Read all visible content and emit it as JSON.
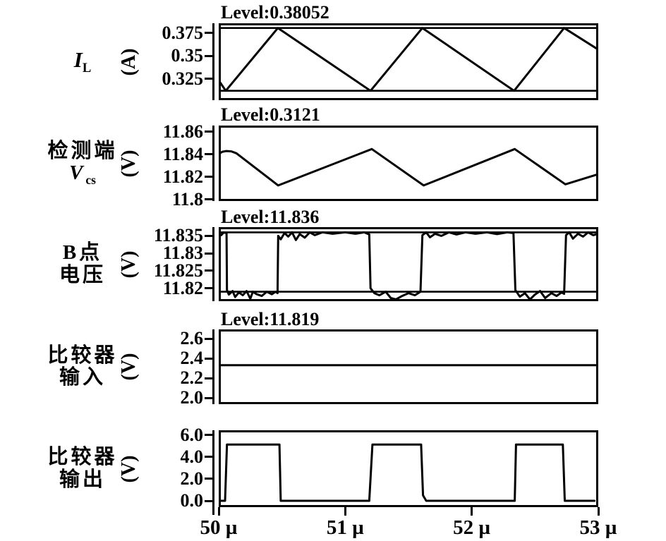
{
  "figure": {
    "background_color": "#ffffff",
    "line_color": "#000000",
    "description": "Five stacked simulation waveform panels sharing one time axis"
  },
  "chart_data": {
    "type": "line",
    "x_axis": {
      "unit": "µs",
      "range": [
        50,
        53
      ],
      "ticks": [
        {
          "label": "50 µ",
          "value": 50
        },
        {
          "label": "51 µ",
          "value": 51
        },
        {
          "label": "52 µ",
          "value": 52
        },
        {
          "label": "53 µ",
          "value": 53
        }
      ]
    },
    "panels": [
      {
        "id": "inductor-current",
        "title": "Level:0.38052",
        "label": {
          "line1": "I",
          "line1_sub": "L"
        },
        "unit": "(A)",
        "domain": [
          0.3019,
          0.3857
        ],
        "yticks": [
          {
            "label": "0.375",
            "value": 0.375
          },
          {
            "label": "0.35",
            "value": 0.35
          },
          {
            "label": "0.325",
            "value": 0.325
          }
        ],
        "levels": [
          0.38052,
          0.3121
        ],
        "series": [
          [
            50.0,
            0.3235
          ],
          [
            50.056,
            0.3121
          ],
          [
            50.468,
            0.38052
          ],
          [
            51.2,
            0.3121
          ],
          [
            51.61,
            0.38052
          ],
          [
            52.335,
            0.3121
          ],
          [
            52.73,
            0.38052
          ],
          [
            53.0,
            0.357
          ]
        ]
      },
      {
        "id": "sense-voltage",
        "title": "Level:0.3121",
        "label": {
          "line1": "检测端",
          "line2": "V",
          "line2_sub": "cs"
        },
        "unit": "(V)",
        "domain": [
          11.7987,
          11.8656
        ],
        "yticks": [
          {
            "label": "11.86",
            "value": 11.86
          },
          {
            "label": "11.84",
            "value": 11.84
          },
          {
            "label": "11.82",
            "value": 11.82
          },
          {
            "label": "11.8",
            "value": 11.8
          }
        ],
        "levels": [],
        "series": [
          [
            50.0,
            11.8405
          ],
          [
            50.03,
            11.8424
          ],
          [
            50.06,
            11.843
          ],
          [
            50.1,
            11.8427
          ],
          [
            50.14,
            11.841
          ],
          [
            50.47,
            11.8125
          ],
          [
            51.21,
            11.8448
          ],
          [
            51.62,
            11.8125
          ],
          [
            52.34,
            11.8448
          ],
          [
            52.74,
            11.8135
          ],
          [
            53.0,
            11.8225
          ]
        ]
      },
      {
        "id": "b-node-voltage",
        "title": "Level:11.836",
        "label": {
          "line1": "B点",
          "line2": "电压"
        },
        "unit": "(V)",
        "domain": [
          11.8163,
          11.8375
        ],
        "yticks": [
          {
            "label": "11.835",
            "value": 11.835
          },
          {
            "label": "11.83",
            "value": 11.83
          },
          {
            "label": "11.825",
            "value": 11.825
          },
          {
            "label": "11.82",
            "value": 11.82
          }
        ],
        "levels": [
          11.836,
          11.819
        ],
        "series": [
          [
            50.0,
            11.836
          ],
          [
            50.02,
            11.8352
          ],
          [
            50.04,
            11.836
          ],
          [
            50.062,
            11.8358
          ],
          [
            50.065,
            11.8195
          ],
          [
            50.08,
            11.8182
          ],
          [
            50.11,
            11.8192
          ],
          [
            50.13,
            11.8175
          ],
          [
            50.16,
            11.8188
          ],
          [
            50.19,
            11.818
          ],
          [
            50.22,
            11.8192
          ],
          [
            50.25,
            11.817
          ],
          [
            50.27,
            11.819
          ],
          [
            50.3,
            11.8183
          ],
          [
            50.34,
            11.8178
          ],
          [
            50.38,
            11.819
          ],
          [
            50.42,
            11.8183
          ],
          [
            50.45,
            11.819
          ],
          [
            50.465,
            11.8186
          ],
          [
            50.47,
            11.835
          ],
          [
            50.49,
            11.834
          ],
          [
            50.52,
            11.8358
          ],
          [
            50.55,
            11.8348
          ],
          [
            50.58,
            11.836
          ],
          [
            50.61,
            11.8338
          ],
          [
            50.64,
            11.8355
          ],
          [
            50.68,
            11.8345
          ],
          [
            50.72,
            11.836
          ],
          [
            50.76,
            11.8352
          ],
          [
            50.82,
            11.836
          ],
          [
            50.9,
            11.8356
          ],
          [
            51.0,
            11.836
          ],
          [
            51.08,
            11.8356
          ],
          [
            51.15,
            11.836
          ],
          [
            51.19,
            11.8354
          ],
          [
            51.2,
            11.82
          ],
          [
            51.23,
            11.8186
          ],
          [
            51.27,
            11.818
          ],
          [
            51.32,
            11.819
          ],
          [
            51.36,
            11.8172
          ],
          [
            51.4,
            11.8168
          ],
          [
            51.45,
            11.8178
          ],
          [
            51.5,
            11.8186
          ],
          [
            51.55,
            11.818
          ],
          [
            51.595,
            11.819
          ],
          [
            51.61,
            11.8352
          ],
          [
            51.64,
            11.836
          ],
          [
            51.67,
            11.8346
          ],
          [
            51.71,
            11.8356
          ],
          [
            51.76,
            11.835
          ],
          [
            51.82,
            11.836
          ],
          [
            51.88,
            11.8354
          ],
          [
            51.95,
            11.836
          ],
          [
            52.03,
            11.8356
          ],
          [
            52.12,
            11.836
          ],
          [
            52.2,
            11.8355
          ],
          [
            52.28,
            11.836
          ],
          [
            52.33,
            11.8358
          ],
          [
            52.345,
            11.8195
          ],
          [
            52.38,
            11.8176
          ],
          [
            52.42,
            11.8186
          ],
          [
            52.46,
            11.8168
          ],
          [
            52.5,
            11.8182
          ],
          [
            52.54,
            11.8192
          ],
          [
            52.58,
            11.8172
          ],
          [
            52.63,
            11.8186
          ],
          [
            52.67,
            11.8178
          ],
          [
            52.71,
            11.8188
          ],
          [
            52.73,
            11.8184
          ],
          [
            52.745,
            11.8352
          ],
          [
            52.77,
            11.836
          ],
          [
            52.8,
            11.8342
          ],
          [
            52.84,
            11.8356
          ],
          [
            52.88,
            11.8348
          ],
          [
            52.92,
            11.836
          ],
          [
            52.96,
            11.8352
          ],
          [
            53.0,
            11.8356
          ]
        ]
      },
      {
        "id": "comparator-input",
        "title": "Level:11.819",
        "label": {
          "line1": "比较器",
          "line2": "输入"
        },
        "unit": "(V)",
        "domain": [
          1.936,
          2.693
        ],
        "yticks": [
          {
            "label": "2.6",
            "value": 2.6
          },
          {
            "label": "2.4",
            "value": 2.4
          },
          {
            "label": "2.2",
            "value": 2.2
          },
          {
            "label": "2.0",
            "value": 2.0
          }
        ],
        "levels": [],
        "series": [
          [
            50.0,
            2.33
          ],
          [
            53.0,
            2.33
          ]
        ]
      },
      {
        "id": "comparator-output",
        "title": null,
        "label": {
          "line1": "比较器",
          "line2": "输出"
        },
        "unit": "(V)",
        "domain": [
          -0.58,
          6.45
        ],
        "yticks": [
          {
            "label": "6.0",
            "value": 6.0
          },
          {
            "label": "4.0",
            "value": 4.0
          },
          {
            "label": "2.0",
            "value": 2.0
          },
          {
            "label": "0.0",
            "value": 0.0
          }
        ],
        "levels": [],
        "series": [
          [
            50.0,
            0.0
          ],
          [
            50.05,
            0.0
          ],
          [
            50.065,
            5.15
          ],
          [
            50.48,
            5.15
          ],
          [
            50.49,
            0.0
          ],
          [
            51.19,
            0.0
          ],
          [
            51.215,
            5.15
          ],
          [
            51.6,
            5.15
          ],
          [
            51.615,
            0.5
          ],
          [
            51.64,
            0.0
          ],
          [
            52.34,
            0.0
          ],
          [
            52.35,
            5.15
          ],
          [
            52.72,
            5.15
          ],
          [
            52.735,
            0.0
          ],
          [
            52.97,
            0.0
          ]
        ]
      }
    ]
  }
}
